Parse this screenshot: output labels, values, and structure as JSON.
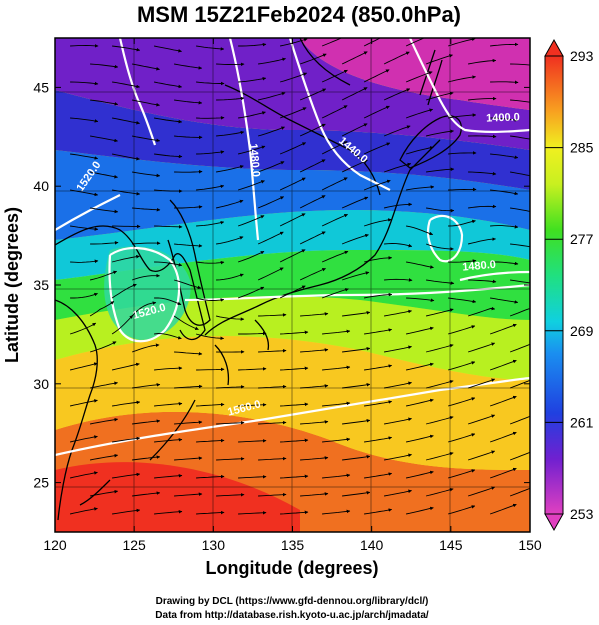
{
  "title": "MSM 15Z21Feb2024 (850.0hPa)",
  "xlabel": "Longitude (degrees)",
  "ylabel": "Latitude  (degrees)",
  "credit_line1": "Drawing by DCL (https://www.gfd-dennou.org/library/dcl/)",
  "credit_line2": "Data from http://database.rish.kyoto-u.ac.jp/arch/jmadata/",
  "chart_data": {
    "type": "heatmap",
    "x_range": [
      120,
      150
    ],
    "y_range": [
      22.5,
      47.5
    ],
    "x_ticks": [
      {
        "value": 120,
        "label": "120"
      },
      {
        "value": 125,
        "label": "125"
      },
      {
        "value": 130,
        "label": "130"
      },
      {
        "value": 135,
        "label": "135"
      },
      {
        "value": 140,
        "label": "140"
      },
      {
        "value": 145,
        "label": "145"
      },
      {
        "value": 150,
        "label": "150"
      }
    ],
    "y_ticks": [
      {
        "value": 25,
        "label": "25"
      },
      {
        "value": 30,
        "label": "30"
      },
      {
        "value": 35,
        "label": "35"
      },
      {
        "value": 40,
        "label": "40"
      },
      {
        "value": 45,
        "label": "45"
      }
    ],
    "colorbar": {
      "min": 253,
      "max": 293,
      "ticks": [
        {
          "value": 253,
          "label": "253"
        },
        {
          "value": 261,
          "label": "261"
        },
        {
          "value": 269,
          "label": "269"
        },
        {
          "value": 277,
          "label": "277"
        },
        {
          "value": 285,
          "label": "285"
        },
        {
          "value": 293,
          "label": "293"
        }
      ]
    },
    "contour_labels": [
      {
        "text": "1520.0",
        "lon": 122.3,
        "lat": 40.4,
        "rot": -55
      },
      {
        "text": "1480.0",
        "lon": 132.4,
        "lat": 41.3,
        "rot": 85
      },
      {
        "text": "1440.0",
        "lon": 138.7,
        "lat": 41.7,
        "rot": 40
      },
      {
        "text": "1400.0",
        "lon": 148.3,
        "lat": 43.3,
        "rot": -2
      },
      {
        "text": "1480.0",
        "lon": 146.8,
        "lat": 35.8,
        "rot": -5
      },
      {
        "text": "1520.0",
        "lon": 126.0,
        "lat": 33.5,
        "rot": -15
      },
      {
        "text": "1560.0",
        "lon": 132.0,
        "lat": 28.6,
        "rot": -15
      }
    ]
  }
}
